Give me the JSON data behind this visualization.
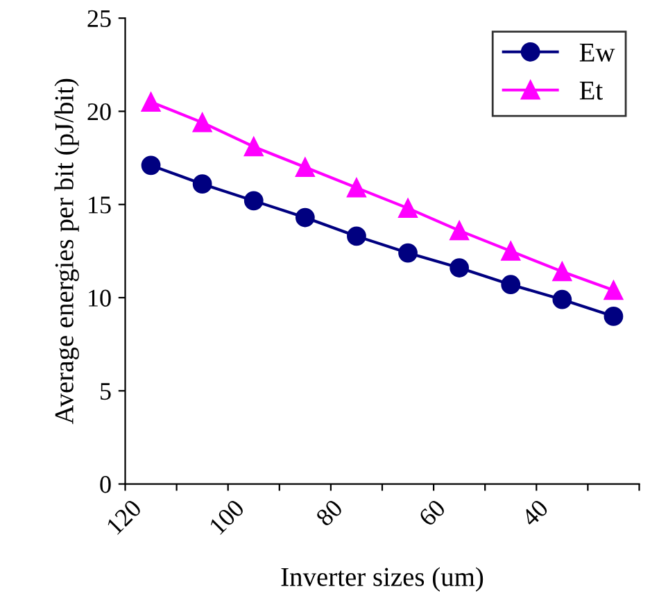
{
  "chart_data": {
    "type": "line",
    "xlabel": "Inverter sizes (um)",
    "ylabel": "Average energies per bit (pJ/bit)",
    "x": [
      115,
      105,
      95,
      85,
      75,
      65,
      55,
      45,
      35,
      25
    ],
    "series": [
      {
        "name": "Ew",
        "color": "#000080",
        "marker": "circle",
        "values": [
          17.1,
          16.1,
          15.2,
          14.3,
          13.3,
          12.4,
          11.6,
          10.7,
          9.9,
          9.0
        ]
      },
      {
        "name": "Et",
        "color": "#ff00ff",
        "marker": "triangle",
        "values": [
          20.5,
          19.4,
          18.1,
          17.0,
          15.9,
          14.8,
          13.6,
          12.5,
          11.4,
          10.4
        ]
      }
    ],
    "xlim": [
      120,
      20
    ],
    "xticks": [
      120,
      {
        "value": 110,
        "label": null
      },
      100,
      {
        "value": 90,
        "label": null
      },
      80,
      {
        "value": 70,
        "label": null
      },
      60,
      {
        "value": 50,
        "label": null
      },
      40,
      {
        "value": 30,
        "label": null
      },
      {
        "value": 20,
        "label": null
      }
    ],
    "ylim": [
      0,
      25
    ],
    "yticks": [
      0,
      5,
      10,
      15,
      20,
      25
    ],
    "grid": false,
    "legend": "top right"
  }
}
